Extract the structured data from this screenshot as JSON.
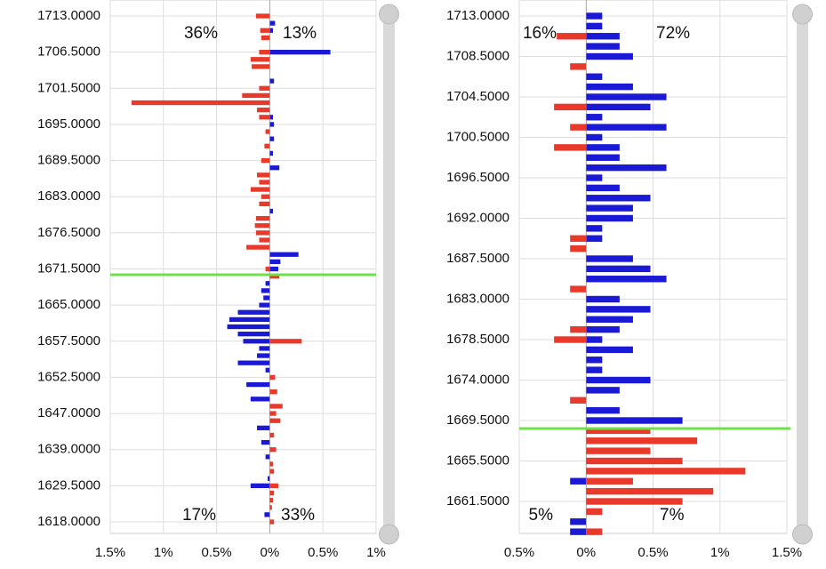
{
  "chart_data": [
    {
      "type": "bar",
      "orientation": "horizontal",
      "grid": true,
      "categories": [
        "1713.0000",
        null,
        null,
        null,
        null,
        "1706.5000",
        null,
        null,
        null,
        null,
        "1701.5000",
        null,
        null,
        null,
        null,
        "1695.0000",
        null,
        null,
        null,
        null,
        "1689.5000",
        null,
        null,
        null,
        null,
        "1683.0000",
        null,
        null,
        null,
        null,
        "1676.5000",
        null,
        null,
        null,
        null,
        "1671.5000",
        null,
        null,
        null,
        null,
        "1665.0000",
        null,
        null,
        null,
        null,
        "1657.5000",
        null,
        null,
        null,
        null,
        "1652.5000",
        null,
        null,
        null,
        null,
        "1647.0000",
        null,
        null,
        null,
        null,
        "1639.0000",
        null,
        null,
        null,
        null,
        "1629.5000",
        null,
        null,
        null,
        null,
        "1618.0000"
      ],
      "xlim": [
        -1.5,
        1
      ],
      "xticks": [
        {
          "value": -1.5,
          "label": "1.5%"
        },
        {
          "value": -1,
          "label": "1%"
        },
        {
          "value": -0.5,
          "label": "0.5%"
        },
        {
          "value": 0,
          "label": "0%"
        },
        {
          "value": 0.5,
          "label": "0.5%"
        },
        {
          "value": 1,
          "label": "1%"
        }
      ],
      "series": [
        {
          "color": "#e8392b",
          "values": [
            -0.13,
            null,
            -0.09,
            -0.08,
            null,
            -0.1,
            -0.18,
            -0.17,
            null,
            null,
            -0.1,
            -0.26,
            -1.3,
            -0.12,
            -0.1,
            null,
            -0.04,
            null,
            -0.05,
            null,
            -0.08,
            null,
            -0.12,
            -0.1,
            -0.18,
            -0.08,
            -0.1,
            null,
            -0.13,
            -0.14,
            -0.13,
            -0.1,
            -0.22,
            null,
            null,
            -0.04,
            0.09,
            null,
            null,
            null,
            null,
            null,
            null,
            null,
            null,
            0.3,
            null,
            null,
            null,
            null,
            0.05,
            null,
            0.07,
            null,
            0.12,
            0.06,
            0.1,
            null,
            0.04,
            null,
            0.06,
            null,
            0.03,
            0.04,
            null,
            0.08,
            0.04,
            0.03,
            0.02,
            null,
            0.04
          ]
        },
        {
          "color": "#1a1ad6",
          "values": [
            null,
            0.05,
            0.03,
            null,
            null,
            0.57,
            null,
            null,
            null,
            0.04,
            null,
            null,
            null,
            null,
            0.03,
            0.04,
            null,
            0.04,
            null,
            0.03,
            null,
            0.09,
            null,
            null,
            null,
            null,
            null,
            0.03,
            null,
            null,
            null,
            null,
            null,
            0.27,
            0.1,
            0.08,
            null,
            -0.04,
            -0.08,
            -0.06,
            -0.1,
            -0.3,
            -0.38,
            -0.4,
            -0.3,
            -0.25,
            -0.1,
            -0.12,
            -0.3,
            -0.04,
            null,
            -0.22,
            null,
            -0.18,
            null,
            null,
            null,
            -0.12,
            null,
            -0.08,
            null,
            -0.04,
            null,
            null,
            -0.02,
            -0.18,
            null,
            null,
            null,
            -0.05,
            null
          ]
        }
      ],
      "annotations": [
        {
          "text": "36%",
          "color": "#e8392b"
        },
        {
          "text": "13%",
          "color": "#4b4bd0"
        },
        {
          "text": "17%",
          "color": "#4b4bd0"
        },
        {
          "text": "33%",
          "color": "#e8392b"
        }
      ]
    },
    {
      "type": "bar",
      "orientation": "horizontal",
      "grid": true,
      "categories": [
        "1713.0000",
        null,
        null,
        null,
        "1708.5000",
        null,
        null,
        null,
        "1704.5000",
        null,
        null,
        null,
        "1700.5000",
        null,
        null,
        null,
        "1696.5000",
        null,
        null,
        null,
        "1692.0000",
        null,
        null,
        null,
        "1687.5000",
        null,
        null,
        null,
        "1683.0000",
        null,
        null,
        null,
        "1678.5000",
        null,
        null,
        null,
        "1674.0000",
        null,
        null,
        null,
        "1669.5000",
        null,
        null,
        null,
        "1665.5000",
        null,
        null,
        null,
        "1661.5000",
        null,
        null,
        null
      ],
      "xlim": [
        -0.5,
        1.5
      ],
      "xticks": [
        {
          "value": -0.5,
          "label": "0.5%"
        },
        {
          "value": 0,
          "label": "0%"
        },
        {
          "value": 0.5,
          "label": "0.5%"
        },
        {
          "value": 1,
          "label": "1%"
        },
        {
          "value": 1.5,
          "label": "1.5%"
        }
      ],
      "series": [
        {
          "color": "#e8392b",
          "values": [
            null,
            null,
            -0.22,
            null,
            null,
            -0.12,
            null,
            null,
            null,
            -0.24,
            null,
            -0.12,
            null,
            -0.24,
            null,
            null,
            null,
            null,
            null,
            null,
            null,
            null,
            -0.12,
            -0.12,
            null,
            null,
            null,
            -0.12,
            null,
            null,
            null,
            -0.12,
            -0.24,
            null,
            null,
            null,
            null,
            null,
            -0.12,
            null,
            null,
            0.48,
            0.83,
            0.48,
            0.72,
            1.19,
            0.35,
            0.95,
            0.72,
            0.12,
            null,
            0.12
          ]
        },
        {
          "color": "#1a1ad6",
          "values": [
            0.12,
            0.12,
            0.25,
            0.25,
            0.35,
            null,
            0.12,
            0.35,
            0.6,
            0.48,
            0.12,
            0.6,
            0.12,
            0.25,
            0.25,
            0.6,
            0.12,
            0.25,
            0.48,
            0.35,
            0.35,
            0.12,
            0.12,
            null,
            0.35,
            0.48,
            0.6,
            null,
            0.25,
            0.48,
            0.35,
            0.25,
            0.12,
            0.35,
            0.12,
            0.12,
            0.48,
            0.25,
            null,
            0.25,
            0.72,
            null,
            null,
            null,
            null,
            null,
            -0.12,
            null,
            null,
            null,
            -0.12,
            -0.12
          ]
        }
      ],
      "annotations": [
        {
          "text": "16%",
          "color": "#e8392b"
        },
        {
          "text": "72%",
          "color": "#4b4bd0"
        },
        {
          "text": "5%",
          "color": "#4b4bd0"
        },
        {
          "text": "7%",
          "color": "#e8392b"
        }
      ]
    }
  ]
}
